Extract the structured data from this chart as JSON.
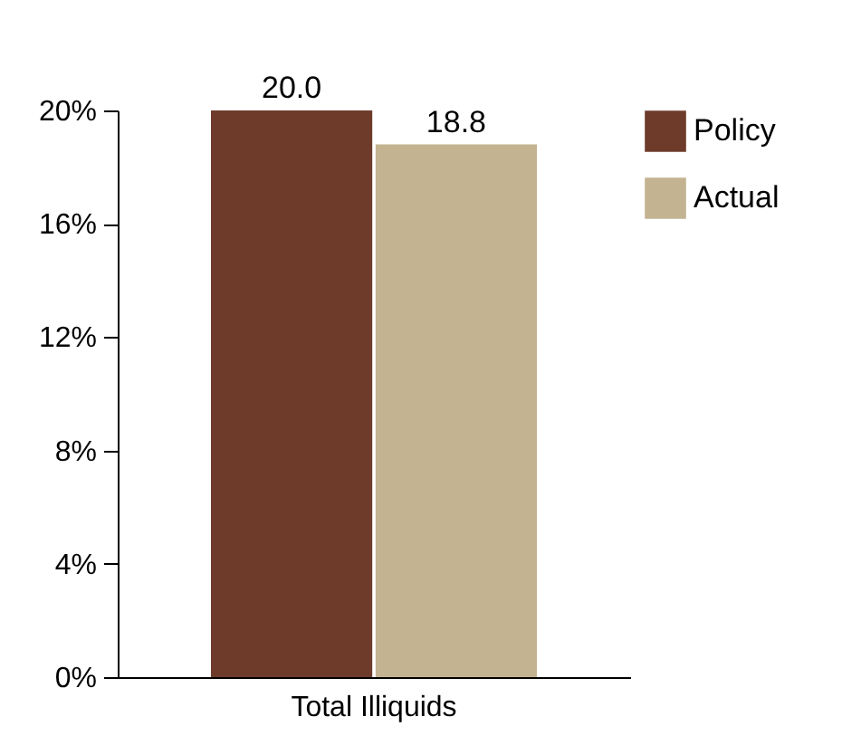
{
  "chart_data": {
    "type": "bar",
    "categories": [
      "Total Illiquids"
    ],
    "series": [
      {
        "name": "Policy",
        "color": "#6e3b2b",
        "values": [
          20.0
        ],
        "value_labels": [
          "20.0"
        ]
      },
      {
        "name": "Actual",
        "color": "#c4b390",
        "values": [
          18.8
        ],
        "value_labels": [
          "18.8"
        ]
      }
    ],
    "ylim": [
      0,
      20
    ],
    "yticks": [
      {
        "value": 0,
        "label": "0%"
      },
      {
        "value": 4,
        "label": "4%"
      },
      {
        "value": 8,
        "label": "8%"
      },
      {
        "value": 12,
        "label": "12%"
      },
      {
        "value": 16,
        "label": "16%"
      },
      {
        "value": 20,
        "label": "20%"
      }
    ],
    "grid": false,
    "legend": "right"
  }
}
